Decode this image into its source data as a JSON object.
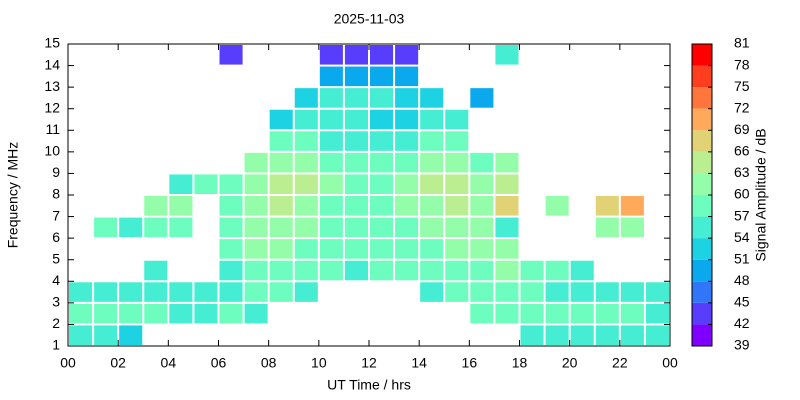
{
  "chart_data": {
    "type": "heatmap",
    "title": "2025-11-03",
    "xlabel": "UT Time / hrs",
    "ylabel": "Frequency / MHz",
    "zlabel": "Signal Amplitude / dB",
    "xlim": [
      0,
      24
    ],
    "ylim": [
      1,
      15
    ],
    "zlim": [
      39,
      81
    ],
    "xticks": [
      {
        "value": 0,
        "label": "00"
      },
      {
        "value": 2,
        "label": "02"
      },
      {
        "value": 4,
        "label": "04"
      },
      {
        "value": 6,
        "label": "06"
      },
      {
        "value": 8,
        "label": "08"
      },
      10,
      12,
      14,
      16,
      18,
      20,
      22,
      {
        "value": 24,
        "label": "00"
      }
    ],
    "yticks": [
      1,
      2,
      3,
      4,
      5,
      6,
      7,
      8,
      9,
      10,
      11,
      12,
      13,
      14,
      15
    ],
    "zticks": [
      39,
      42,
      45,
      48,
      51,
      54,
      57,
      60,
      63,
      66,
      69,
      72,
      75,
      78,
      81
    ],
    "colors": [
      "#8000ff",
      "#583dfd",
      "#3176f8",
      "#0aa9ee",
      "#1dd2e2",
      "#45eed2",
      "#6cfdbf",
      "#93fda9",
      "#baee91",
      "#e2d276",
      "#ffa95a",
      "#ff763d",
      "#ff3d1f",
      "#ff0000"
    ],
    "xbins": [
      0,
      1,
      2,
      3,
      4,
      5,
      6,
      7,
      8,
      9,
      10,
      11,
      12,
      13,
      14,
      15,
      16,
      17,
      18,
      19,
      20,
      21,
      22,
      23,
      24
    ],
    "ybins": [
      1,
      2,
      3,
      4,
      5,
      6,
      7,
      8,
      9,
      10,
      11,
      12,
      13,
      14,
      15
    ],
    "z": [
      [
        54,
        54,
        52,
        null,
        null,
        null,
        null,
        null,
        null,
        null,
        null,
        null,
        null,
        null,
        null,
        null,
        null,
        null,
        54,
        54,
        54,
        54,
        54,
        54
      ],
      [
        57,
        58,
        57,
        58,
        56,
        55,
        57,
        56,
        null,
        null,
        null,
        null,
        null,
        null,
        null,
        null,
        57,
        58,
        57,
        58,
        58,
        57,
        57,
        56
      ],
      [
        55,
        55,
        55,
        56,
        55,
        55,
        56,
        58,
        58,
        56,
        null,
        null,
        null,
        null,
        56,
        57,
        58,
        58,
        57,
        56,
        55,
        55,
        54,
        54
      ],
      [
        null,
        null,
        null,
        54,
        null,
        null,
        56,
        58,
        59,
        58,
        57,
        56,
        57,
        57,
        58,
        59,
        59,
        60,
        58,
        57,
        56,
        null,
        null,
        null
      ],
      [
        null,
        null,
        null,
        null,
        null,
        null,
        57,
        60,
        60,
        59,
        58,
        57,
        58,
        58,
        59,
        60,
        61,
        60,
        null,
        null,
        null,
        null,
        null,
        null
      ],
      [
        null,
        57,
        55,
        58,
        57,
        null,
        58,
        61,
        62,
        60,
        59,
        58,
        59,
        59,
        60,
        61,
        60,
        56,
        null,
        null,
        null,
        62,
        60,
        null
      ],
      [
        null,
        null,
        null,
        60,
        62,
        null,
        57,
        62,
        64,
        62,
        58,
        57,
        58,
        60,
        62,
        64,
        60,
        66,
        null,
        60,
        null,
        68,
        69,
        null
      ],
      [
        null,
        null,
        null,
        null,
        54,
        57,
        57,
        62,
        65,
        63,
        60,
        58,
        59,
        61,
        63,
        65,
        61,
        63,
        null,
        null,
        null,
        null,
        null,
        null
      ],
      [
        null,
        null,
        null,
        null,
        null,
        null,
        null,
        60,
        61,
        60,
        58,
        57,
        57,
        59,
        60,
        62,
        58,
        60,
        null,
        null,
        null,
        null,
        null,
        null
      ],
      [
        null,
        null,
        null,
        null,
        null,
        null,
        null,
        null,
        58,
        57,
        56,
        55,
        55,
        56,
        57,
        58,
        null,
        null,
        null,
        null,
        null,
        null,
        null,
        null
      ],
      [
        null,
        null,
        null,
        null,
        null,
        null,
        null,
        null,
        53,
        54,
        54,
        54,
        53,
        53,
        54,
        54,
        null,
        null,
        null,
        null,
        null,
        null,
        null,
        null
      ],
      [
        null,
        null,
        null,
        null,
        null,
        null,
        null,
        null,
        null,
        53,
        54,
        56,
        55,
        52,
        52,
        null,
        50,
        null,
        null,
        null,
        null,
        null,
        null,
        null
      ],
      [
        null,
        null,
        null,
        null,
        null,
        null,
        null,
        null,
        null,
        null,
        48,
        50,
        50,
        48,
        null,
        null,
        null,
        null,
        null,
        null,
        null,
        null,
        null,
        null
      ],
      [
        null,
        null,
        null,
        null,
        null,
        null,
        42,
        null,
        null,
        null,
        42,
        42,
        44,
        44,
        null,
        null,
        null,
        56,
        null,
        null,
        null,
        null,
        null,
        null
      ]
    ]
  }
}
